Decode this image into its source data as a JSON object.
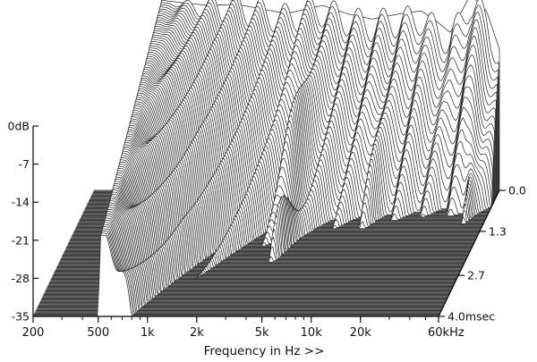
{
  "chart_data": {
    "type": "waterfall (cumulative spectral decay)",
    "title": "",
    "xlabel": "Frequency in Hz >>",
    "x_scale": "log",
    "x_range_hz": [
      200,
      60000
    ],
    "x_ticks": [
      {
        "hz": 200,
        "label": "200"
      },
      {
        "hz": 500,
        "label": "500"
      },
      {
        "hz": 1000,
        "label": "1k"
      },
      {
        "hz": 2000,
        "label": "2k"
      },
      {
        "hz": 5000,
        "label": "5k"
      },
      {
        "hz": 10000,
        "label": "10k"
      },
      {
        "hz": 20000,
        "label": "20k"
      },
      {
        "hz": 60000,
        "label": "60kHz"
      }
    ],
    "zlabel": "",
    "z_range_db": [
      -35,
      0
    ],
    "z_ticks": [
      {
        "db": 0,
        "label": "0dB"
      },
      {
        "db": -7,
        "label": "-7"
      },
      {
        "db": -14,
        "label": "-14"
      },
      {
        "db": -21,
        "label": "-21"
      },
      {
        "db": -28,
        "label": "-28"
      },
      {
        "db": -35,
        "label": "-35"
      }
    ],
    "time_range_ms": [
      0,
      4.0
    ],
    "time_ticks": [
      {
        "ms": 0.0,
        "label": "0.0"
      },
      {
        "ms": 1.3,
        "label": "1.3"
      },
      {
        "ms": 2.7,
        "label": "2.7"
      },
      {
        "ms": 4.0,
        "label": "4.0msec"
      }
    ],
    "time_slices": 110,
    "approx_response_db": {
      "freq_hz": [
        200,
        330,
        500,
        700,
        1000,
        1500,
        2000,
        3000,
        5000,
        7000,
        10000,
        15000,
        20000,
        25000,
        30000,
        40000,
        50000,
        60000
      ],
      "level_db_at_0ms": [
        -35,
        -35,
        0,
        -0.5,
        -1,
        -0.8,
        -1.5,
        -2.5,
        -1,
        -2.5,
        -3.5,
        -2.5,
        -2,
        -4,
        -6,
        1,
        -2,
        -9
      ]
    }
  }
}
